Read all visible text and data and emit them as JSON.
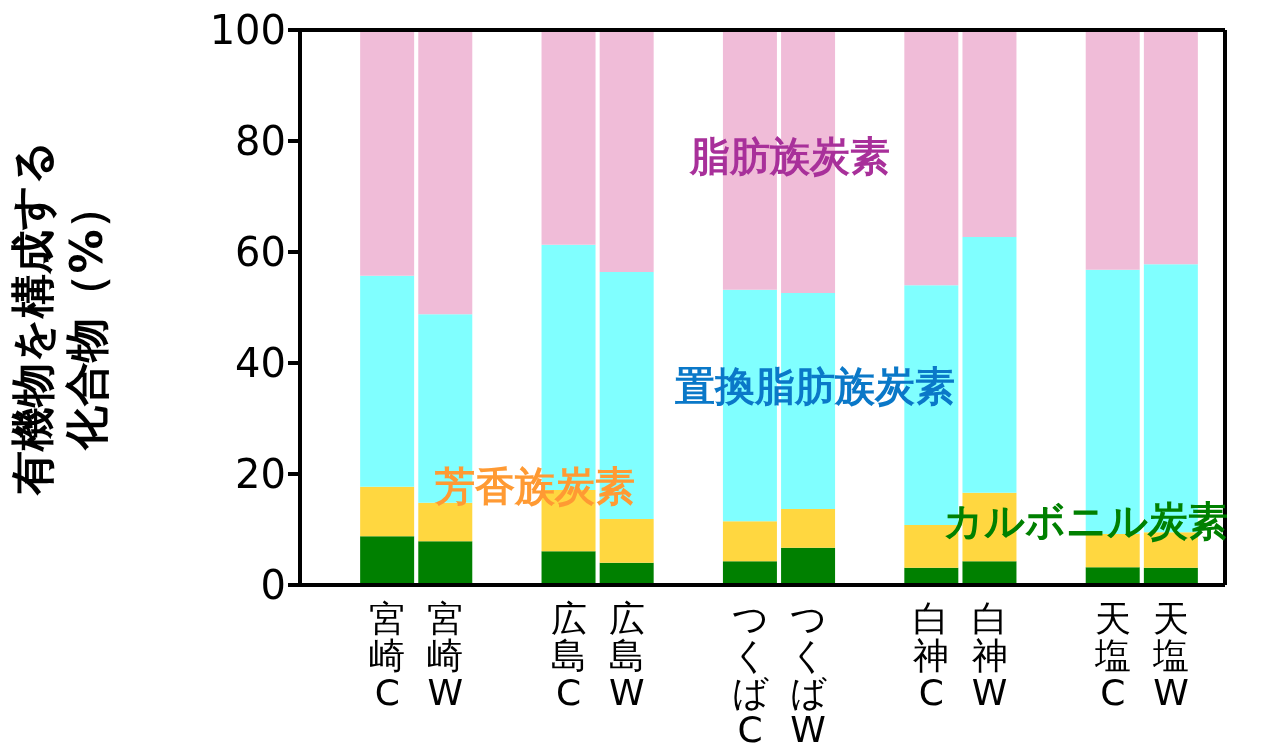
{
  "chart_data": {
    "type": "bar",
    "stacked": true,
    "ylabel": "有機物を構成する化合物（%）",
    "categories": [
      "宮崎C",
      "宮崎W",
      "広島C",
      "広島W",
      "つくばC",
      "つくばW",
      "白神C",
      "白神W",
      "天塩C",
      "天塩W"
    ],
    "series": [
      {
        "name": "カルボニル炭素",
        "color": "#008000",
        "values": [
          8.8,
          7.9,
          6.1,
          4.0,
          4.3,
          6.7,
          3.1,
          4.3,
          3.2,
          3.1
        ]
      },
      {
        "name": "芳香族炭素",
        "color": "#ffd740",
        "values": [
          8.9,
          6.9,
          11.0,
          7.9,
          7.2,
          7.0,
          7.7,
          12.3,
          6.0,
          6.4
        ]
      },
      {
        "name": "置換脂肪族炭素",
        "color": "#80ffff",
        "values": [
          38.0,
          34.0,
          44.2,
          44.5,
          41.7,
          38.9,
          43.2,
          46.1,
          47.6,
          48.3
        ]
      },
      {
        "name": "脂肪族炭素",
        "color": "#f0bcd8",
        "values": [
          44.3,
          51.2,
          38.7,
          43.6,
          46.8,
          47.4,
          46.0,
          37.3,
          43.2,
          42.2
        ]
      }
    ],
    "ylim": [
      0,
      100
    ],
    "yticks": [
      0,
      20,
      40,
      60,
      80,
      100
    ],
    "grid": false,
    "legend": false
  }
}
